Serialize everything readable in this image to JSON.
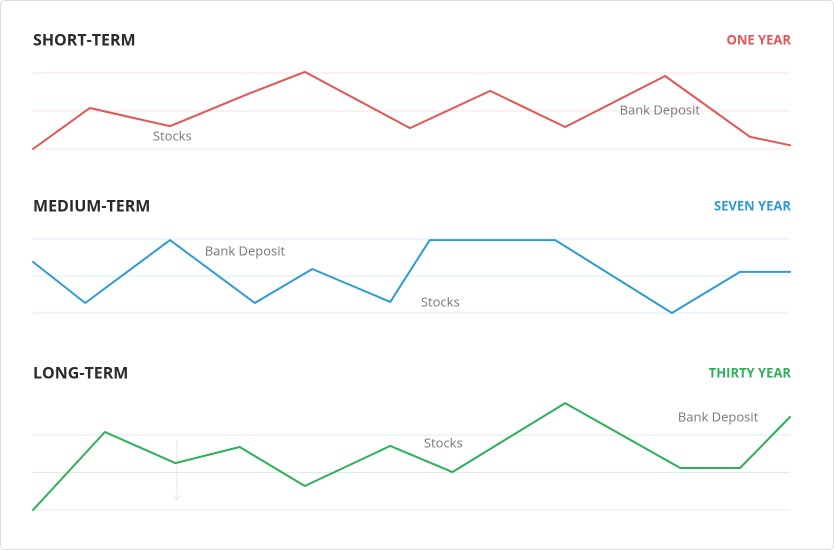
{
  "chart_data": [
    {
      "type": "line",
      "title": "SHORT-TERM",
      "subtitle": "ONE YEAR",
      "color": "#e25555",
      "x": [
        0,
        7.5,
        18.1,
        28.7,
        35.9,
        49.8,
        60.4,
        70.3,
        83.5,
        94.7,
        100
      ],
      "values": [
        0,
        1.08,
        0.6,
        1.47,
        2.03,
        0.55,
        1.53,
        0.58,
        1.92,
        0.32,
        0.1
      ],
      "xlim": [
        0,
        100
      ],
      "ylim": [
        0,
        2
      ],
      "yticks": [
        0,
        1,
        2
      ],
      "grid": true,
      "annotations": [
        {
          "text": "Stocks",
          "x": 18.4,
          "y": 0.32
        },
        {
          "text": "Bank Deposit",
          "x": 82.8,
          "y": 1.0
        }
      ]
    },
    {
      "type": "line",
      "title": "MEDIUM-TERM",
      "subtitle": "SEVEN YEAR",
      "color": "#2e9bd6",
      "x": [
        0,
        6.9,
        18.1,
        29.3,
        36.9,
        47.2,
        52.4,
        69.0,
        84.4,
        93.4,
        100
      ],
      "values": [
        1.38,
        0.27,
        1.97,
        0.27,
        1.19,
        0.3,
        1.97,
        1.97,
        0,
        1.11,
        1.11
      ],
      "xlim": [
        0,
        100
      ],
      "ylim": [
        0,
        2
      ],
      "yticks": [
        0,
        1,
        2
      ],
      "grid": true,
      "annotations": [
        {
          "text": "Bank Deposit",
          "x": 28.0,
          "y": 1.65
        },
        {
          "text": "Stocks",
          "x": 53.8,
          "y": 0.27
        }
      ]
    },
    {
      "type": "line",
      "title": "LONG-TERM",
      "subtitle": "THIRTY YEAR",
      "color": "#2eaf5a",
      "x": [
        0,
        9.5,
        18.8,
        27.3,
        35.9,
        47.2,
        55.4,
        70.3,
        85.5,
        93.4,
        100
      ],
      "values": [
        0,
        2.08,
        1.25,
        1.68,
        0.64,
        1.71,
        1.01,
        2.85,
        1.12,
        1.12,
        2.48
      ],
      "xlim": [
        0,
        100
      ],
      "ylim": [
        0,
        2
      ],
      "yticks": [
        0,
        1,
        2
      ],
      "grid": true,
      "annotations": [
        {
          "text": "Stocks",
          "x": 54.2,
          "y": 1.76
        },
        {
          "text": "Bank Deposit",
          "x": 90.5,
          "y": 2.45
        }
      ]
    }
  ]
}
